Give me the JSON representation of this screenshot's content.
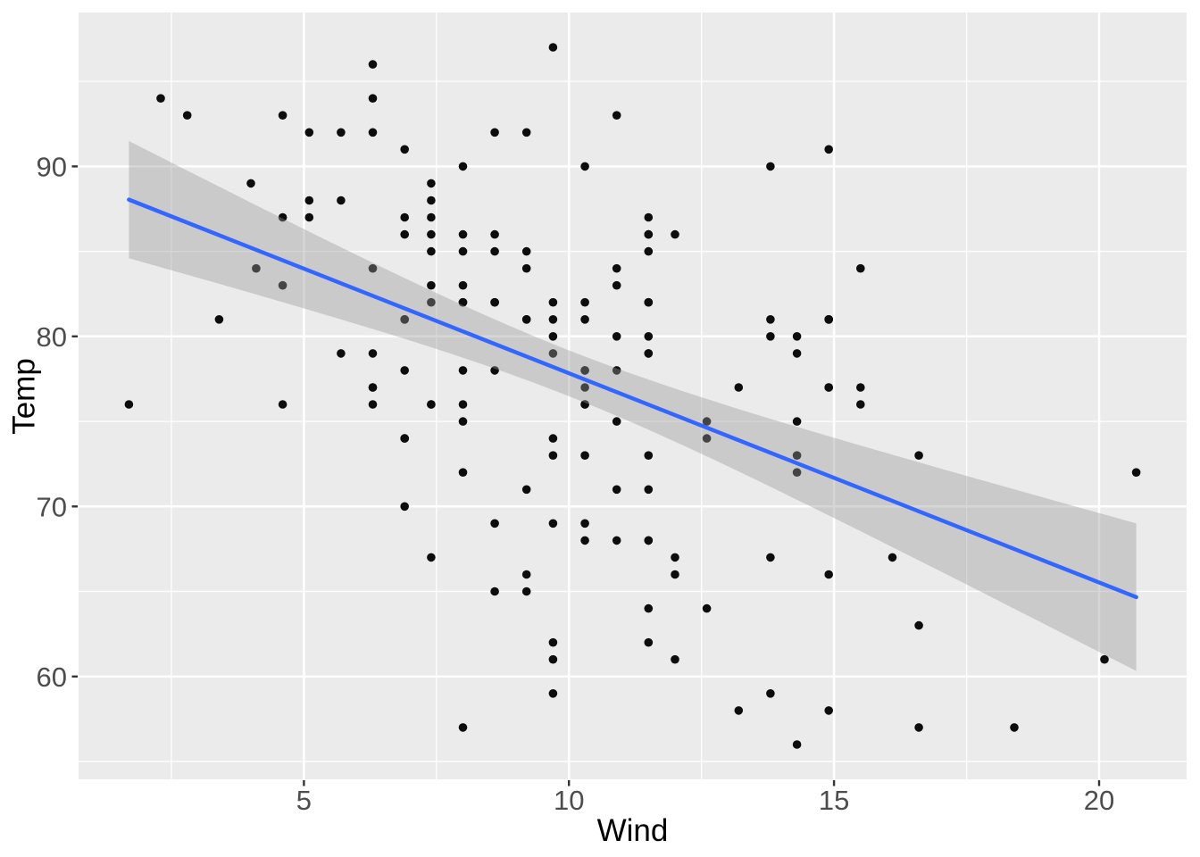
{
  "chart_data": {
    "type": "scatter",
    "title": "",
    "xlabel": "Wind",
    "ylabel": "Temp",
    "xlim": [
      0.75,
      21.65
    ],
    "ylim": [
      53.95,
      99.05
    ],
    "x_ticks": [
      5,
      10,
      15,
      20
    ],
    "y_ticks": [
      60,
      70,
      80,
      90
    ],
    "x_minor_ticks": [
      2.5,
      7.5,
      12.5,
      17.5
    ],
    "y_minor_ticks": [
      55,
      65,
      75,
      85,
      95
    ],
    "grid": "on",
    "legend_position": "none",
    "points": [
      [
        7.4,
        67
      ],
      [
        8,
        72
      ],
      [
        12.6,
        74
      ],
      [
        11.5,
        62
      ],
      [
        14.3,
        56
      ],
      [
        14.9,
        66
      ],
      [
        8.6,
        65
      ],
      [
        13.8,
        59
      ],
      [
        20.1,
        61
      ],
      [
        8.6,
        69
      ],
      [
        6.9,
        74
      ],
      [
        9.7,
        69
      ],
      [
        9.2,
        66
      ],
      [
        10.9,
        68
      ],
      [
        13.2,
        58
      ],
      [
        11.5,
        64
      ],
      [
        12,
        66
      ],
      [
        18.4,
        57
      ],
      [
        11.5,
        68
      ],
      [
        9.7,
        62
      ],
      [
        9.7,
        59
      ],
      [
        16.6,
        73
      ],
      [
        9.7,
        61
      ],
      [
        12,
        61
      ],
      [
        16.6,
        57
      ],
      [
        14.9,
        58
      ],
      [
        8,
        57
      ],
      [
        12,
        67
      ],
      [
        14.9,
        81
      ],
      [
        5.7,
        79
      ],
      [
        7.4,
        76
      ],
      [
        8.6,
        78
      ],
      [
        9.7,
        74
      ],
      [
        16.1,
        67
      ],
      [
        9.2,
        84
      ],
      [
        8.6,
        85
      ],
      [
        14.3,
        79
      ],
      [
        9.7,
        82
      ],
      [
        6.9,
        87
      ],
      [
        13.8,
        90
      ],
      [
        11.5,
        87
      ],
      [
        10.9,
        93
      ],
      [
        9.2,
        92
      ],
      [
        8,
        82
      ],
      [
        13.8,
        80
      ],
      [
        11.5,
        79
      ],
      [
        14.9,
        77
      ],
      [
        20.7,
        72
      ],
      [
        9.2,
        65
      ],
      [
        11.5,
        73
      ],
      [
        10.3,
        76
      ],
      [
        6.3,
        77
      ],
      [
        1.7,
        76
      ],
      [
        4.6,
        76
      ],
      [
        6.3,
        76
      ],
      [
        8,
        75
      ],
      [
        8,
        78
      ],
      [
        10.3,
        73
      ],
      [
        11.5,
        80
      ],
      [
        14.9,
        77
      ],
      [
        8,
        83
      ],
      [
        4.1,
        84
      ],
      [
        9.2,
        85
      ],
      [
        9.2,
        81
      ],
      [
        10.9,
        84
      ],
      [
        4.6,
        83
      ],
      [
        10.9,
        83
      ],
      [
        5.1,
        88
      ],
      [
        6.3,
        92
      ],
      [
        5.7,
        92
      ],
      [
        7.4,
        89
      ],
      [
        8.6,
        82
      ],
      [
        14.3,
        73
      ],
      [
        14.9,
        81
      ],
      [
        14.9,
        91
      ],
      [
        14.3,
        80
      ],
      [
        6.9,
        81
      ],
      [
        10.3,
        82
      ],
      [
        6.3,
        84
      ],
      [
        5.1,
        87
      ],
      [
        11.5,
        85
      ],
      [
        6.9,
        74
      ],
      [
        9.7,
        81
      ],
      [
        11.5,
        82
      ],
      [
        8.6,
        86
      ],
      [
        8,
        85
      ],
      [
        8.6,
        82
      ],
      [
        12,
        86
      ],
      [
        7.4,
        88
      ],
      [
        7.4,
        86
      ],
      [
        7.4,
        83
      ],
      [
        9.2,
        81
      ],
      [
        6.9,
        81
      ],
      [
        13.8,
        81
      ],
      [
        7.4,
        82
      ],
      [
        6.9,
        86
      ],
      [
        7.4,
        85
      ],
      [
        4.6,
        87
      ],
      [
        4,
        89
      ],
      [
        10.3,
        90
      ],
      [
        8,
        90
      ],
      [
        8.6,
        92
      ],
      [
        11.5,
        86
      ],
      [
        11.5,
        86
      ],
      [
        11.5,
        82
      ],
      [
        9.7,
        80
      ],
      [
        11.5,
        79
      ],
      [
        10.3,
        77
      ],
      [
        6.3,
        79
      ],
      [
        7.4,
        76
      ],
      [
        10.9,
        78
      ],
      [
        10.3,
        78
      ],
      [
        15.5,
        77
      ],
      [
        14.3,
        72
      ],
      [
        12.6,
        75
      ],
      [
        9.7,
        79
      ],
      [
        3.4,
        81
      ],
      [
        8,
        86
      ],
      [
        5.7,
        88
      ],
      [
        9.7,
        97
      ],
      [
        2.3,
        94
      ],
      [
        6.3,
        96
      ],
      [
        6.3,
        94
      ],
      [
        6.9,
        91
      ],
      [
        5.1,
        92
      ],
      [
        2.8,
        93
      ],
      [
        4.6,
        93
      ],
      [
        7.4,
        87
      ],
      [
        15.5,
        84
      ],
      [
        10.9,
        80
      ],
      [
        10.3,
        78
      ],
      [
        10.9,
        75
      ],
      [
        9.7,
        73
      ],
      [
        14.9,
        81
      ],
      [
        15.5,
        76
      ],
      [
        6.3,
        77
      ],
      [
        10.9,
        71
      ],
      [
        11.5,
        71
      ],
      [
        6.9,
        78
      ],
      [
        13.8,
        67
      ],
      [
        10.3,
        76
      ],
      [
        10.3,
        68
      ],
      [
        8,
        82
      ],
      [
        12.6,
        64
      ],
      [
        9.2,
        71
      ],
      [
        10.3,
        81
      ],
      [
        10.3,
        69
      ],
      [
        16.6,
        63
      ],
      [
        6.9,
        70
      ],
      [
        13.2,
        77
      ],
      [
        14.3,
        75
      ],
      [
        8,
        76
      ],
      [
        11.5,
        68
      ]
    ],
    "smooth": {
      "method": "lm",
      "x_min": 1.7,
      "x_max": 20.7,
      "intercept": 90.135,
      "slope": -1.2305,
      "ci_level": 0.95,
      "ci": {
        "n": 153,
        "mean_x": 9.9575,
        "sxx": 1886.5,
        "sigma": 8.442,
        "t": 1.976
      }
    },
    "style": {
      "panel_bg": "#EBEBEB",
      "grid_color": "#FFFFFF",
      "point_color": "#0D0D0D",
      "line_color": "#3366FF",
      "ribbon_color": "#999999",
      "ribbon_alpha": 0.4,
      "tick_label_color": "#4D4D4D",
      "tick_mark_color": "#333333",
      "axis_title_color": "#000000"
    }
  }
}
